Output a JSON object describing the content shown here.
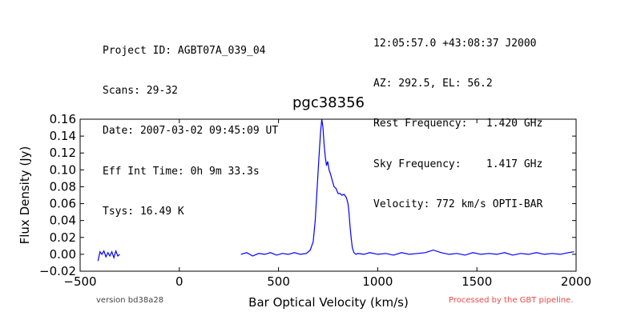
{
  "header_left": [
    "Project ID: AGBT07A_039_04",
    "Scans: 29-32",
    "Date: 2007-03-02 09:45:09 UT",
    "Eff Int Time: 0h 9m 33.3s",
    "Tsys: 16.49 K"
  ],
  "header_right": [
    "12:05:57.0 +43:08:37 J2000",
    "AZ: 292.5, EL: 56.2",
    "Rest Frequency:   1.420 GHz",
    "Sky Frequency:    1.417 GHz",
    "Velocity: 772 km/s OPTI-BAR"
  ],
  "footer": {
    "version": "version bd38a28",
    "processed": "Processed by the GBT pipeline."
  },
  "chart_data": {
    "type": "line",
    "title": "pgc38356",
    "xlabel": "Bar Optical Velocity (km/s)",
    "ylabel": "Flux Density (Jy)",
    "xlim": [
      -500,
      2000
    ],
    "ylim": [
      -0.02,
      0.16
    ],
    "x_ticks": [
      -500,
      0,
      500,
      1000,
      1500,
      2000
    ],
    "x_tick_labels": [
      "−500",
      "0",
      "500",
      "1000",
      "1500",
      "2000"
    ],
    "y_ticks": [
      -0.02,
      0.0,
      0.02,
      0.04,
      0.06,
      0.08,
      0.1,
      0.12,
      0.14,
      0.16
    ],
    "y_tick_labels": [
      "−0.02",
      "0.00",
      "0.02",
      "0.04",
      "0.06",
      "0.08",
      "0.10",
      "0.12",
      "0.14",
      "0.16"
    ],
    "grid": false,
    "line_color": "#0000ff",
    "series": [
      {
        "segments": [
          {
            "x": [
              -410,
              -400,
              -390,
              -380,
              -370,
              -360,
              -350,
              -340,
              -330,
              -320,
              -310,
              -300
            ],
            "y": [
              -0.008,
              0.003,
              0.0,
              0.004,
              -0.003,
              0.002,
              -0.002,
              0.003,
              -0.004,
              0.004,
              -0.002,
              0.0
            ]
          },
          {
            "x": [
              310,
              340,
              370,
              400,
              430,
              460,
              490,
              520,
              550,
              580,
              610,
              640,
              660,
              675,
              685,
              695,
              705,
              712,
              718,
              724,
              730,
              736,
              742,
              748,
              755,
              762,
              770,
              780,
              790,
              800,
              810,
              820,
              830,
              840,
              845,
              850,
              855,
              860,
              866,
              872,
              880,
              890,
              900,
              930,
              960,
              1000,
              1040,
              1080,
              1120,
              1160,
              1200,
              1240,
              1280,
              1320,
              1360,
              1400,
              1440,
              1480,
              1520,
              1560,
              1600,
              1640,
              1680,
              1720,
              1760,
              1800,
              1840,
              1880,
              1920,
              1960,
              1990
            ],
            "y": [
              0.0,
              0.002,
              -0.002,
              0.001,
              0.0,
              0.002,
              -0.001,
              0.001,
              0.0,
              0.002,
              0.0,
              0.001,
              0.005,
              0.015,
              0.04,
              0.08,
              0.12,
              0.145,
              0.16,
              0.15,
              0.13,
              0.115,
              0.105,
              0.11,
              0.1,
              0.095,
              0.088,
              0.08,
              0.078,
              0.072,
              0.072,
              0.07,
              0.071,
              0.068,
              0.065,
              0.06,
              0.05,
              0.035,
              0.02,
              0.008,
              0.002,
              0.0,
              0.001,
              0.0,
              0.002,
              0.0,
              0.001,
              -0.001,
              0.002,
              0.0,
              0.001,
              0.002,
              0.005,
              0.002,
              0.0,
              0.001,
              -0.001,
              0.002,
              0.0,
              0.001,
              0.0,
              0.002,
              -0.001,
              0.001,
              0.0,
              0.002,
              0.0,
              0.001,
              0.0,
              0.002,
              0.003
            ]
          }
        ]
      }
    ]
  }
}
